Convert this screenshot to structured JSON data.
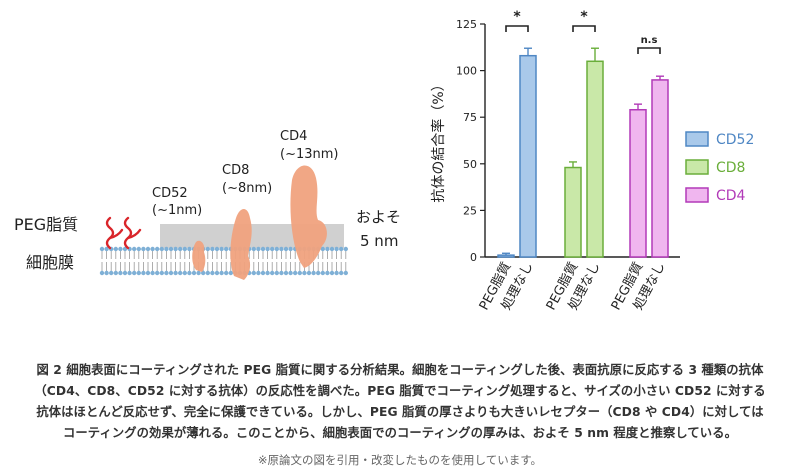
{
  "illustration": {
    "labels": {
      "peg": "PEG脂質",
      "membrane": "細胞膜",
      "cd52": [
        "CD52",
        "(~1nm)"
      ],
      "cd8": [
        "CD8",
        "(~8nm)"
      ],
      "cd4": [
        "CD4",
        "(~13nm)"
      ],
      "thickness": [
        "およそ",
        "5 nm"
      ]
    },
    "colors": {
      "receptor": "#f0a27e",
      "peg_chain": "#d9252a",
      "coating": "#c8c8c8",
      "lipid_head": "#7fb0d6",
      "lipid_tail": "#999999"
    }
  },
  "chart_data": {
    "type": "bar",
    "ylabel": "抗体の結合率（%）",
    "ylim": [
      0,
      125
    ],
    "yticks": [
      0,
      25,
      50,
      75,
      100,
      125
    ],
    "x_tick_labels": [
      "PEG脂質",
      "処理なし",
      "PEG脂質",
      "処理なし",
      "PEG脂質",
      "処理なし"
    ],
    "groups": [
      {
        "name": "CD52",
        "color": "#4f87c4",
        "light": "#a9c9ea",
        "values": [
          1,
          108
        ],
        "errors": [
          1,
          4
        ],
        "significance": "*"
      },
      {
        "name": "CD8",
        "color": "#6aae3a",
        "light": "#c9e8a8",
        "values": [
          48,
          105
        ],
        "errors": [
          3,
          7
        ],
        "significance": "*"
      },
      {
        "name": "CD4",
        "color": "#b23ab8",
        "light": "#f0b6ef",
        "values": [
          79,
          95
        ],
        "errors": [
          3,
          2
        ],
        "significance": "n.s"
      }
    ],
    "legend": [
      "CD52",
      "CD8",
      "CD4"
    ],
    "legend_position": "right"
  },
  "caption": {
    "lines": [
      "図 2 細胞表面にコーティングされた PEG 脂質に関する分析結果。細胞をコーティングした後、表面抗原に反応する 3 種類の抗体",
      "（CD4、CD8、CD52 に対する抗体）の反応性を調べた。PEG 脂質でコーティング処理すると、サイズの小さい CD52 に対する",
      "抗体はほとんど反応せず、完全に保護できている。しかし、PEG 脂質の厚さよりも大きいレセプター（CD8 や CD4）に対しては",
      "コーティングの効果が薄れる。このことから、細胞表面でのコーティングの厚みは、およそ 5 nm 程度と推察している。"
    ],
    "note": "※原論文の図を引用・改変したものを使用しています。"
  }
}
